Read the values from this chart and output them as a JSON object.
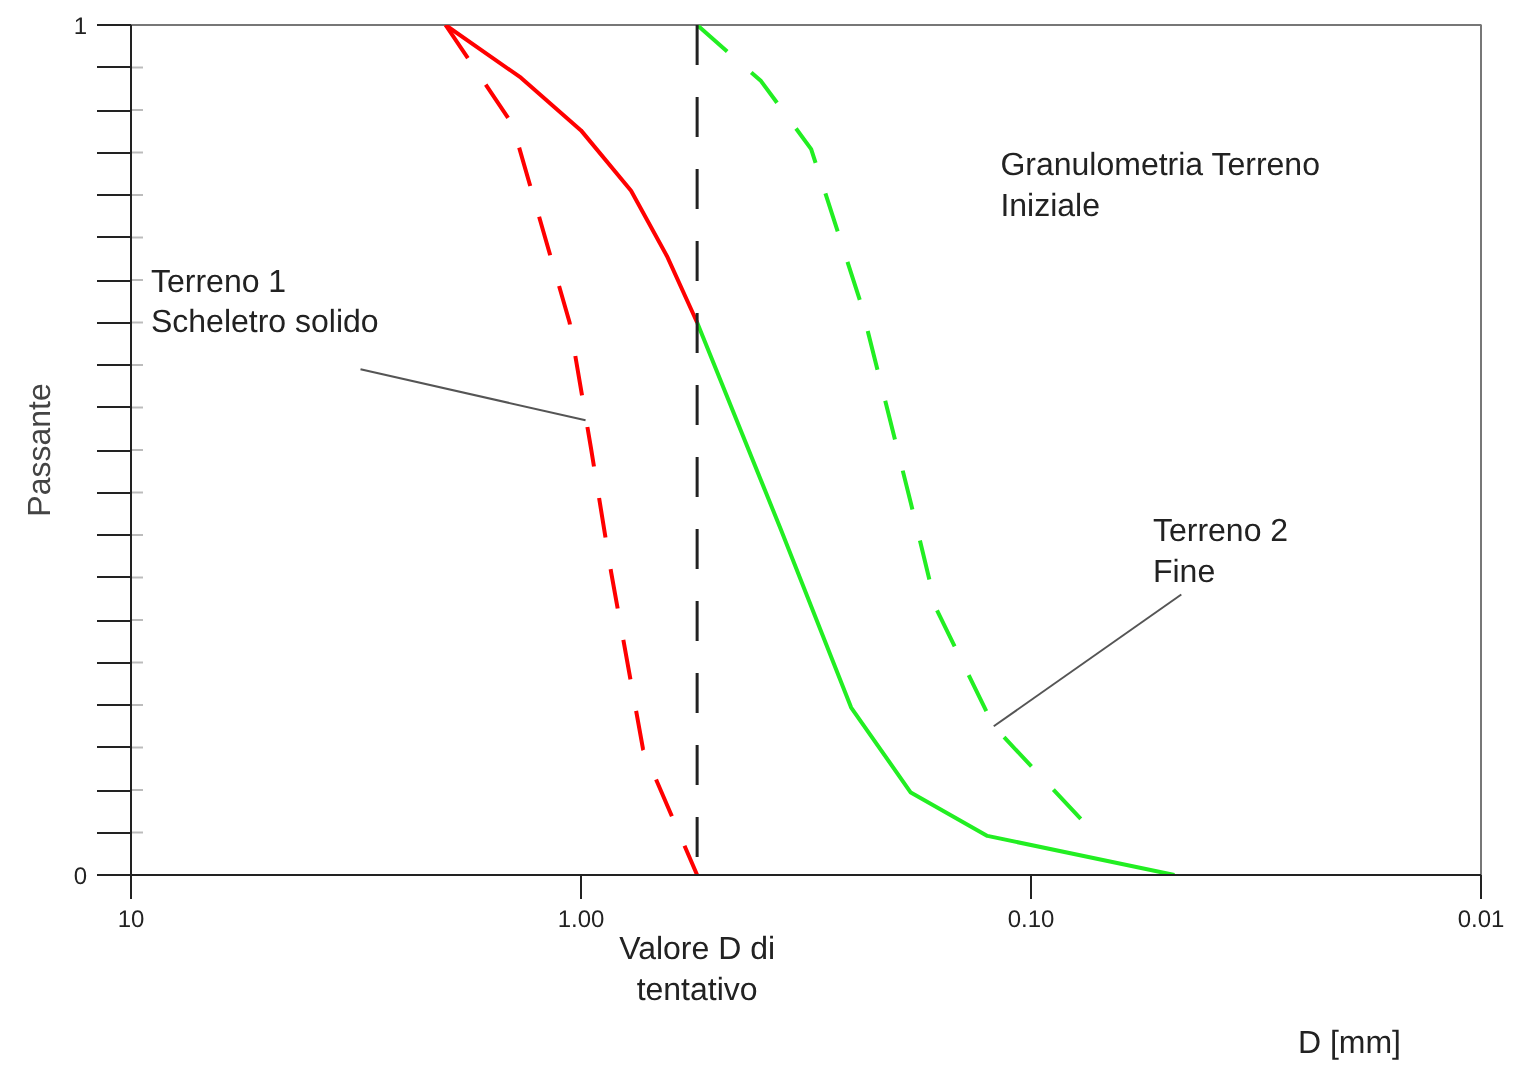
{
  "chart_data": {
    "type": "line",
    "xlabel": "D [mm]",
    "ylabel": "Passante",
    "log": "x",
    "grid": false,
    "marker": "none",
    "xlim": [
      10,
      0.01
    ],
    "xticks": [
      {
        "value": 10,
        "label": "10"
      },
      {
        "value": 1,
        "label": "1.00"
      },
      {
        "value": 0.1,
        "label": "0.10"
      },
      {
        "value": 0.01,
        "label": "0.01"
      }
    ],
    "ylim": [
      0,
      1
    ],
    "yticks": [
      0,
      {
        "value": 0.05,
        "label": null
      },
      {
        "value": 0.1,
        "label": null
      },
      {
        "value": 0.15,
        "label": null
      },
      {
        "value": 0.2,
        "label": null
      },
      {
        "value": 0.25,
        "label": null
      },
      {
        "value": 0.3,
        "label": null
      },
      {
        "value": 0.35,
        "label": null
      },
      {
        "value": 0.4,
        "label": null
      },
      {
        "value": 0.45,
        "label": null
      },
      {
        "value": 0.5,
        "label": null
      },
      {
        "value": 0.55,
        "label": null
      },
      {
        "value": 0.6,
        "label": null
      },
      {
        "value": 0.65,
        "label": null
      },
      {
        "value": 0.7,
        "label": null
      },
      {
        "value": 0.75,
        "label": null
      },
      {
        "value": 0.8,
        "label": null
      },
      {
        "value": 0.85,
        "label": null
      },
      {
        "value": 0.9,
        "label": null
      },
      {
        "value": 0.95,
        "label": null
      },
      1
    ],
    "series": [
      {
        "color": "#ff0000",
        "line_style": "solid",
        "x": [
          2.0,
          1.36,
          1.0,
          0.774,
          0.644,
          0.552
        ],
        "values": [
          1.0,
          0.938,
          0.876,
          0.805,
          0.728,
          0.65
        ]
      },
      {
        "color": "#ff0000",
        "line_style": "dashed",
        "x": [
          2.0,
          1.42,
          1.06,
          0.95,
          0.857,
          0.728,
          0.552
        ],
        "values": [
          1.0,
          0.883,
          0.65,
          0.502,
          0.356,
          0.148,
          0
        ]
      },
      {
        "color": "#22ee22",
        "line_style": "solid",
        "x": [
          0.552,
          0.36,
          0.251,
          0.185,
          0.125,
          0.048
        ],
        "values": [
          0.65,
          0.407,
          0.197,
          0.097,
          0.046,
          0
        ]
      },
      {
        "color": "#22ee22",
        "line_style": "dashed",
        "x": [
          0.552,
          0.398,
          0.308,
          0.239,
          0.185,
          0.162,
          0.121,
          0.0775
        ],
        "values": [
          1.0,
          0.934,
          0.854,
          0.673,
          0.438,
          0.312,
          0.175,
          0.066
        ]
      }
    ],
    "ref_lines": [
      {
        "axis": "x",
        "value": 0.552,
        "label": "Valore D di\ntentativo",
        "color": "#222222",
        "line_style": "dashed"
      }
    ],
    "annotations": [
      "Granulometria Terreno\nIniziale",
      {
        "text": "Terreno 1\nScheletro solido",
        "x": 0.977,
        "y": 0.535
      },
      {
        "text": "Terreno 2\nFine",
        "x": 0.121,
        "y": 0.175
      }
    ]
  }
}
